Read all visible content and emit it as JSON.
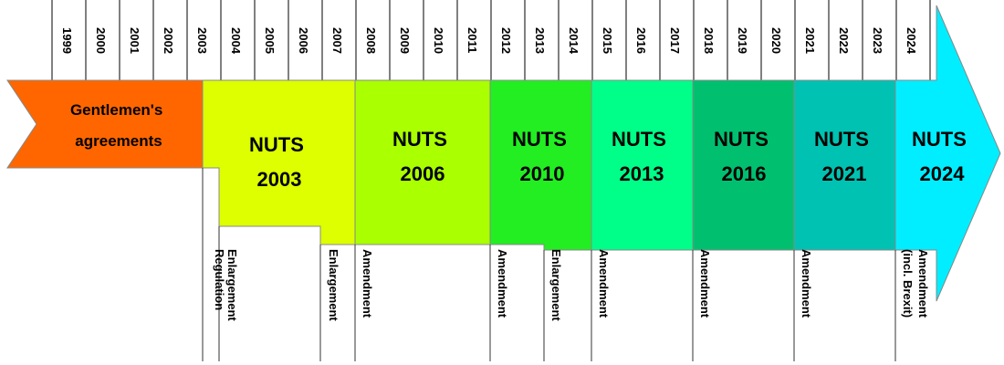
{
  "years": [
    "1999",
    "2000",
    "2001",
    "2002",
    "2003",
    "2004",
    "2005",
    "2006",
    "2007",
    "2008",
    "2009",
    "2010",
    "2011",
    "2012",
    "2013",
    "2014",
    "2015",
    "2016",
    "2017",
    "2018",
    "2019",
    "2020",
    "2021",
    "2022",
    "2023",
    "2024"
  ],
  "pre_period": {
    "label_lines": [
      "Gentlemen's",
      "agreements"
    ],
    "color": "#ff6600"
  },
  "periods": [
    {
      "line1": "NUTS",
      "line2": "2003",
      "color": "#ddff00"
    },
    {
      "line1": "NUTS",
      "line2": "2006",
      "color": "#aaff00"
    },
    {
      "line1": "NUTS",
      "line2": "2010",
      "color": "#22ee22"
    },
    {
      "line1": "NUTS",
      "line2": "2013",
      "color": "#00ff88"
    },
    {
      "line1": "NUTS",
      "line2": "2016",
      "color": "#00c070"
    },
    {
      "line1": "NUTS",
      "line2": "2021",
      "color": "#00c2b2"
    },
    {
      "line1": "NUTS",
      "line2": "2024",
      "color": "#00eeff"
    }
  ],
  "events": [
    {
      "lines": [
        "Regulation"
      ]
    },
    {
      "lines": [
        "Enlargement"
      ]
    },
    {
      "lines": [
        "Enlargement"
      ]
    },
    {
      "lines": [
        "Amendment"
      ]
    },
    {
      "lines": [
        "Amendment"
      ]
    },
    {
      "lines": [
        "Enlargement"
      ]
    },
    {
      "lines": [
        "Amendment"
      ]
    },
    {
      "lines": [
        "Amendment"
      ]
    },
    {
      "lines": [
        "Amendment"
      ]
    },
    {
      "lines": [
        "Amendment",
        "(incl. Brexit)"
      ]
    }
  ]
}
